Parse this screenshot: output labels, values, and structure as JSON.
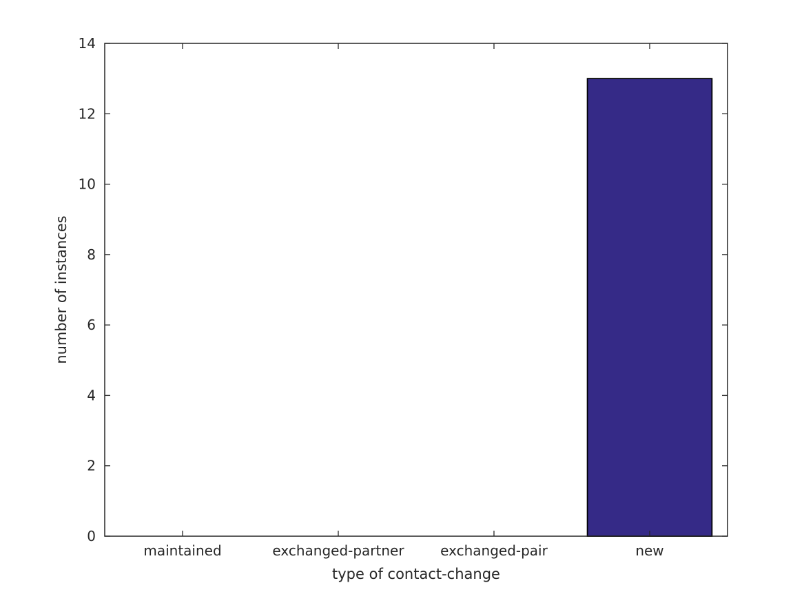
{
  "chart_data": {
    "type": "bar",
    "title": "",
    "categories": [
      "maintained",
      "exchanged-partner",
      "exchanged-pair",
      "new"
    ],
    "values": [
      0,
      0,
      0,
      13
    ],
    "xlabel": "type of contact-change",
    "ylabel": "number of instances",
    "ylim": [
      0,
      14
    ],
    "yticks": [
      0,
      2,
      4,
      6,
      8,
      10,
      12,
      14
    ],
    "bar_width_fraction": 0.8,
    "grid": false,
    "legend": null,
    "colors": {
      "bar_fill": "#352a87",
      "bar_edge": "#000000",
      "axis": "#262626",
      "text": "#262626",
      "background": "#ffffff"
    }
  }
}
